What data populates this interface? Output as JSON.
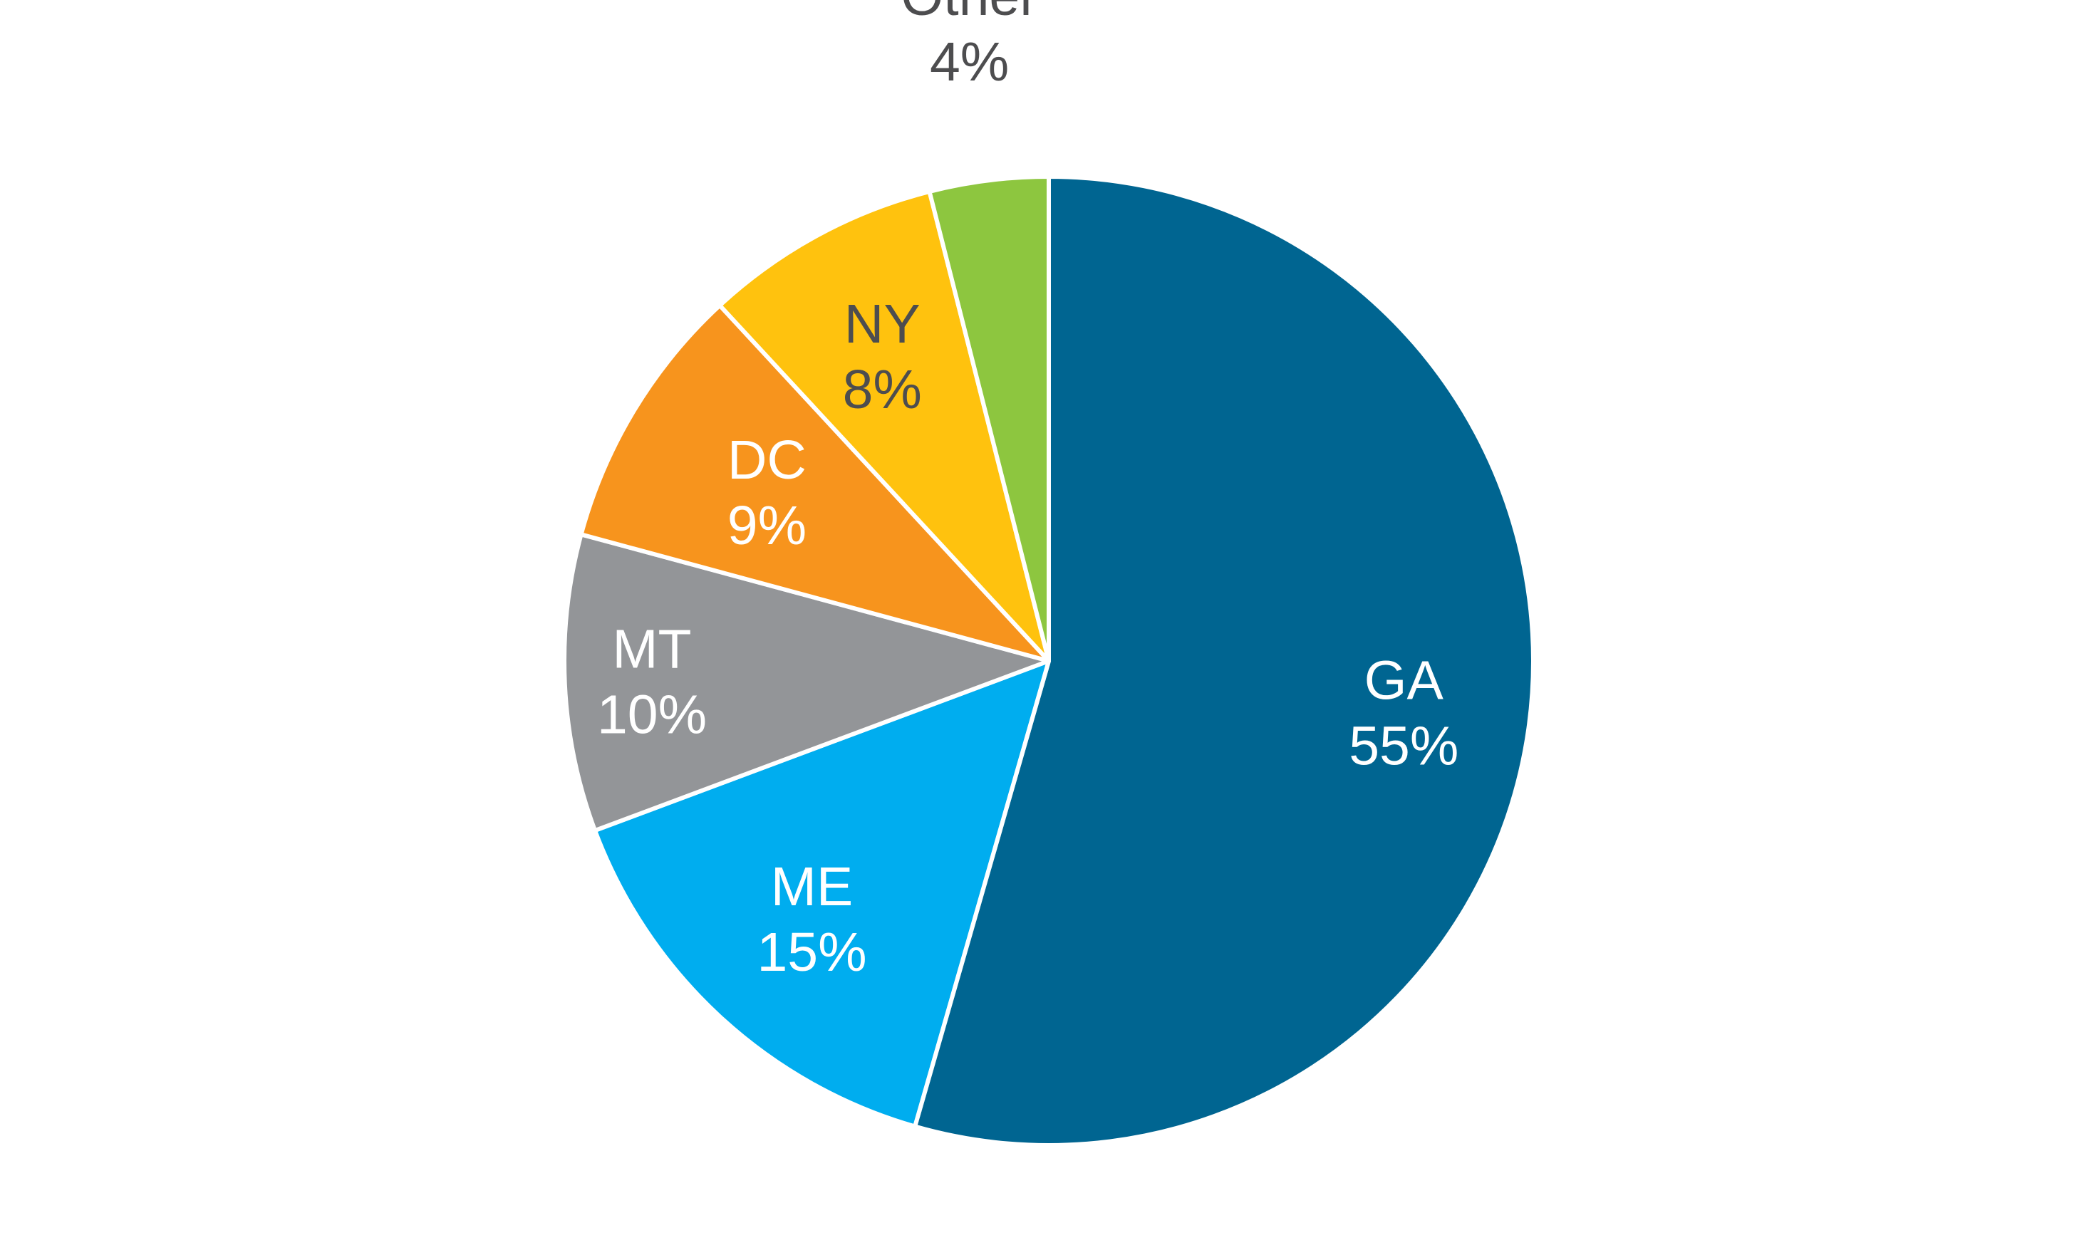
{
  "chart_data": {
    "type": "pie",
    "title": "",
    "start_angle_deg": 0,
    "direction": "clockwise",
    "slices": [
      {
        "label": "GA",
        "value": 55,
        "value_label": "55%",
        "color": "#006591",
        "text_color": "#ffffff"
      },
      {
        "label": "ME",
        "value": 15,
        "value_label": "15%",
        "color": "#00adef",
        "text_color": "#ffffff"
      },
      {
        "label": "MT",
        "value": 10,
        "value_label": "10%",
        "color": "#939598",
        "text_color": "#ffffff"
      },
      {
        "label": "DC",
        "value": 9,
        "value_label": "9%",
        "color": "#f7941d",
        "text_color": "#ffffff"
      },
      {
        "label": "NY",
        "value": 8,
        "value_label": "8%",
        "color": "#ffc20e",
        "text_color": "#4d4d4f"
      },
      {
        "label": "Other",
        "value": 4,
        "value_label": "4%",
        "color": "#8dc63f",
        "text_color": "#4d4d4f"
      }
    ],
    "legend": "none",
    "separator_color": "#ffffff"
  }
}
